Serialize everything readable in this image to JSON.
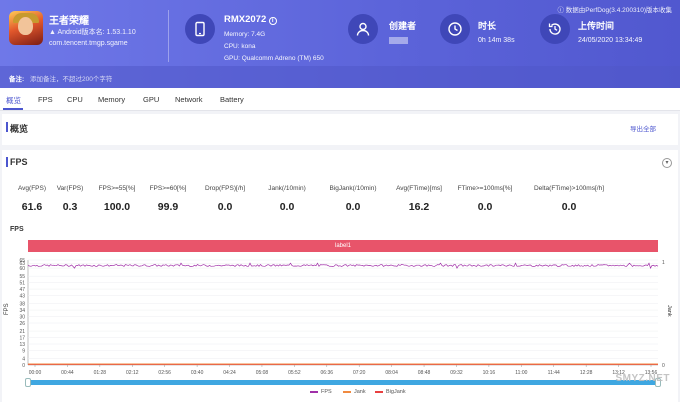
{
  "app": {
    "name": "王者荣耀",
    "version": "Android版本名: 1.53.1.10",
    "package": "com.tencent.tmgp.sgame"
  },
  "device": {
    "icon": "phone-icon",
    "name": "RMX2072",
    "memory": "Memory: 7.4G",
    "cpu": "CPU: kona",
    "gpu": "GPU: Qualcomm Adreno (TM) 650"
  },
  "creator": {
    "icon": "user-icon",
    "label": "创建者"
  },
  "duration": {
    "icon": "clock-icon",
    "label": "时长",
    "value": "0h 14m 38s"
  },
  "upload": {
    "icon": "history-icon",
    "label": "上传时间",
    "value": "24/05/2020 13:34:49"
  },
  "source_note": "数据由PerfDog(3.4.200310)版本收集",
  "remark": {
    "label": "备注:",
    "placeholder": "添加备注，不超过200个字符"
  },
  "tabs": [
    "概览",
    "FPS",
    "CPU",
    "Memory",
    "GPU",
    "Network",
    "Battery"
  ],
  "overview": {
    "title": "概览",
    "export": "导出全部"
  },
  "fps_panel": {
    "title": "FPS",
    "metrics": [
      {
        "label": "Avg(FPS)",
        "value": "61.6"
      },
      {
        "label": "Var(FPS)",
        "value": "0.3"
      },
      {
        "label": "FPS>=55[%]",
        "value": "100.0"
      },
      {
        "label": "FPS>=60[%]",
        "value": "99.9"
      },
      {
        "label": "Drop(FPS)[/h]",
        "value": "0.0"
      },
      {
        "label": "Jank(/10min)",
        "value": "0.0"
      },
      {
        "label": "BigJank(/10min)",
        "value": "0.0"
      },
      {
        "label": "Avg(FTime)[ms]",
        "value": "16.2"
      },
      {
        "label": "FTime>=100ms[%]",
        "value": "0.0"
      },
      {
        "label": "Delta(FTime)>100ms[/h]",
        "value": "0.0"
      }
    ]
  },
  "chart_data": {
    "type": "line",
    "title": "FPS",
    "band_label": "label1",
    "ylabel": "FPS",
    "ylabel_right": "Jank",
    "yticks": [
      0,
      4,
      9,
      13,
      17,
      21,
      26,
      30,
      34,
      38,
      43,
      47,
      51,
      55,
      60,
      63,
      65
    ],
    "ylim": [
      0,
      65
    ],
    "right_ticks": [
      "1",
      "0"
    ],
    "xticks": [
      "00:00",
      "00:44",
      "01:28",
      "02:12",
      "02:56",
      "03:40",
      "04:24",
      "05:08",
      "05:52",
      "06:36",
      "07:20",
      "08:04",
      "08:48",
      "09:32",
      "10:16",
      "11:00",
      "11:44",
      "12:28",
      "13:12",
      "13:56"
    ],
    "duration_seconds": 878,
    "series": [
      {
        "name": "FPS",
        "color": "#a030a8",
        "mean": 61.6,
        "min": 60,
        "max": 63
      },
      {
        "name": "Jank",
        "color": "#f08a40",
        "constant": 0
      },
      {
        "name": "BigJank",
        "color": "#e84040",
        "constant": 0
      }
    ],
    "grid": true
  },
  "watermark": "SMYZ.NET"
}
